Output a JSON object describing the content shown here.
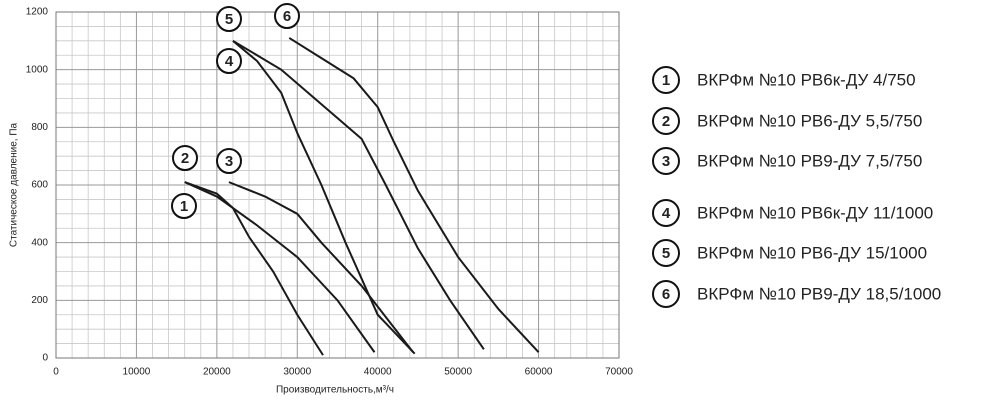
{
  "chart_data": {
    "type": "line",
    "xlabel": "Производительность,м³/ч",
    "ylabel": "Статическое давление, Па",
    "xlim": [
      0,
      70000
    ],
    "xticks": [
      0,
      10000,
      20000,
      30000,
      40000,
      50000,
      60000,
      70000
    ],
    "ylim": [
      0,
      1200
    ],
    "yticks": [
      0,
      200,
      400,
      600,
      800,
      1000,
      1200
    ],
    "xminorticks": [
      2000,
      4000,
      6000,
      8000,
      12000,
      14000,
      16000,
      18000,
      22000,
      24000,
      26000,
      28000,
      32000,
      34000,
      36000,
      38000,
      42000,
      44000,
      46000,
      48000,
      52000,
      54000,
      56000,
      58000,
      62000,
      64000,
      66000,
      68000
    ],
    "yminorticks": [
      50,
      100,
      150,
      250,
      300,
      350,
      450,
      500,
      550,
      650,
      700,
      750,
      850,
      900,
      950,
      1050,
      1100,
      1150
    ],
    "grid": true,
    "series": [
      {
        "label": "1",
        "name": "ВКРФм №10 РВ6к-ДУ 4/750",
        "color": "#1a1a1a",
        "x": [
          16000,
          20000,
          22000,
          24000,
          27000,
          30000,
          33200
        ],
        "values": [
          610,
          570,
          520,
          420,
          300,
          150,
          10
        ]
      },
      {
        "label": "2",
        "name": "ВКРФм №10 РВ6-ДУ 5,5/750",
        "color": "#1a1a1a",
        "x": [
          16000,
          20000,
          25000,
          30000,
          35000,
          39600
        ],
        "values": [
          610,
          560,
          460,
          350,
          200,
          20
        ]
      },
      {
        "label": "3",
        "name": "ВКРФм №10 РВ9-ДУ 7,5/750",
        "color": "#1a1a1a",
        "x": [
          21500,
          26000,
          30000,
          33000,
          38000,
          44400
        ],
        "values": [
          610,
          560,
          500,
          400,
          250,
          20
        ]
      },
      {
        "label": "4",
        "name": "ВКРФм №10 РВ6к-ДУ 11/1000",
        "color": "#1a1a1a",
        "x": [
          22000,
          25000,
          28000,
          30000,
          33000,
          36000,
          40000,
          44600
        ],
        "values": [
          1100,
          1030,
          920,
          780,
          600,
          400,
          150,
          15
        ]
      },
      {
        "label": "5",
        "name": "ВКРФм №10 РВ6-ДУ 15/1000",
        "color": "#1a1a1a",
        "x": [
          22000,
          28000,
          33000,
          38000,
          41000,
          45000,
          49000,
          53200
        ],
        "values": [
          1100,
          1000,
          880,
          760,
          600,
          380,
          200,
          30
        ]
      },
      {
        "label": "6",
        "name": "ВКРФм №10 РВ9-ДУ 18,5/1000",
        "color": "#1a1a1a",
        "x": [
          29000,
          33000,
          37000,
          40000,
          42000,
          45000,
          50000,
          55000,
          60000
        ],
        "values": [
          1110,
          1040,
          970,
          870,
          750,
          580,
          350,
          170,
          20
        ]
      }
    ]
  }
}
